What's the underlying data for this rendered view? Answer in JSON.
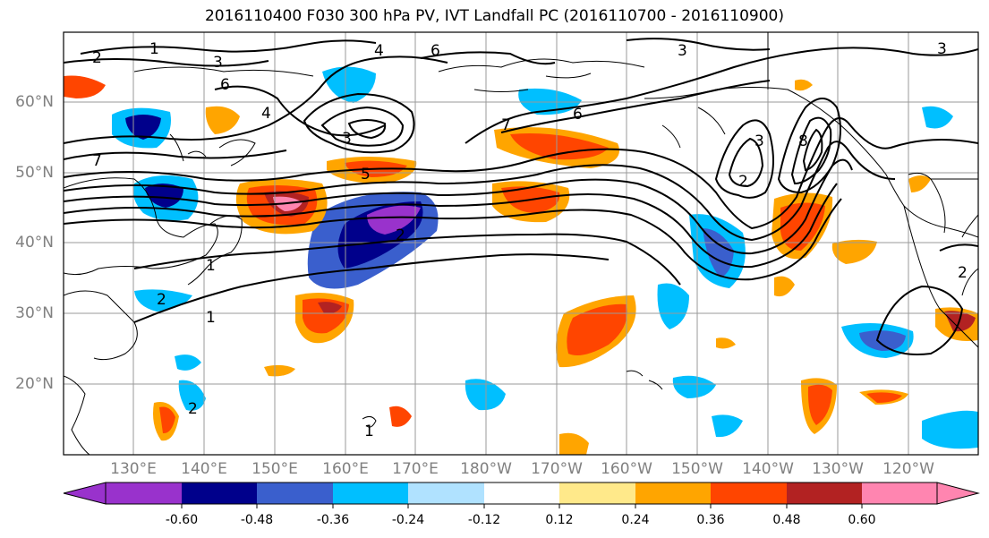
{
  "title": "2016110400 F030 300 hPa PV, IVT Landfall PC (2016110700 - 2016110900)",
  "lat_labels": [
    "60°N",
    "50°N",
    "40°N",
    "30°N",
    "20°N"
  ],
  "lon_labels": [
    "130°E",
    "140°E",
    "150°E",
    "160°E",
    "170°E",
    "180°W",
    "170°W",
    "160°W",
    "150°W",
    "140°W",
    "130°W",
    "120°W"
  ],
  "contour_labels": [
    "1",
    "2",
    "3",
    "4",
    "5",
    "6",
    "7",
    "8"
  ],
  "colorbar": {
    "colors": [
      "#9932cc",
      "#00008b",
      "#3a5fcd",
      "#00bfff",
      "#b0e2ff",
      "#ffffff",
      "#ffe98a",
      "#ffa500",
      "#ff4500",
      "#b22222",
      "#ff85b0"
    ],
    "ticks": [
      "-0.60",
      "-0.48",
      "-0.36",
      "-0.24",
      "-0.12",
      "0.12",
      "0.24",
      "0.36",
      "0.48",
      "0.60"
    ]
  },
  "legend_colors": {
    "frame": "#000000",
    "grid": "#808080",
    "contour": "#000000"
  }
}
